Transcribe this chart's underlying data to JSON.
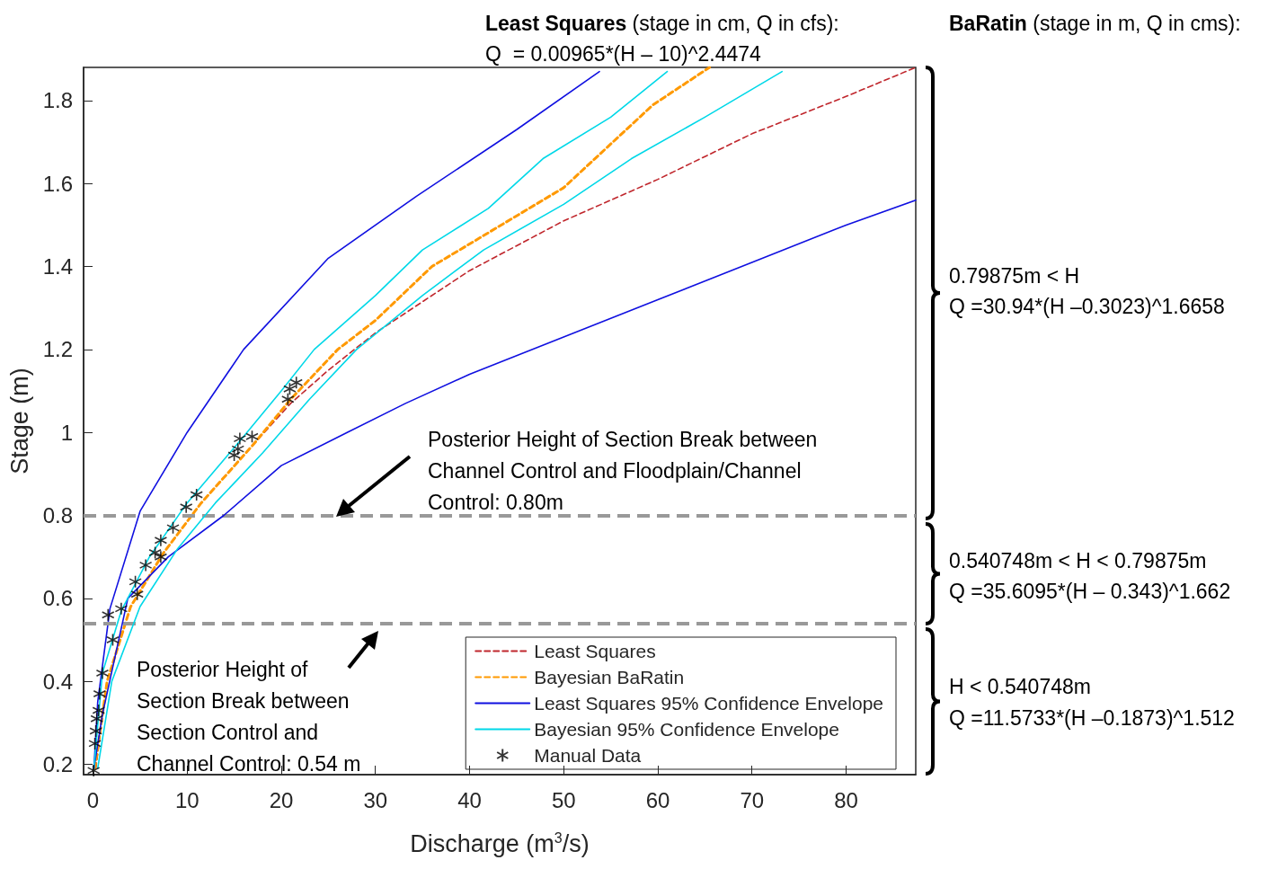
{
  "chart_data": {
    "type": "line",
    "xlabel": "Discharge (m$^{3}$/s)",
    "ylabel": "Stage (m)",
    "xlim": [
      -1,
      87.4
    ],
    "xticks": [
      0,
      10,
      20,
      30,
      40,
      50,
      60,
      70,
      80
    ],
    "ylim": [
      0.175,
      1.88
    ],
    "yticks": [
      0.2,
      0.4,
      0.6,
      0.8,
      1,
      1.2,
      1.4,
      1.6,
      1.8
    ],
    "legend": "bottom right",
    "series": [
      {
        "name": "Least Squares",
        "color": "#c0272d",
        "line_style": "dashed",
        "x": [
          0.3,
          1.5,
          4,
          7.5,
          11.5,
          17,
          21,
          25,
          30,
          40,
          50,
          60,
          70,
          80,
          87.4
        ],
        "values": [
          0.19,
          0.4,
          0.58,
          0.71,
          0.83,
          0.97,
          1.07,
          1.15,
          1.24,
          1.39,
          1.51,
          1.61,
          1.72,
          1.81,
          1.88
        ]
      },
      {
        "name": "Bayesian BaRatin",
        "color": "#ff9900",
        "line_style": "dashed",
        "x": [
          0.2,
          1.5,
          4,
          7.5,
          11.5,
          17,
          21,
          26,
          30,
          36,
          50,
          59.5,
          65.5
        ],
        "values": [
          0.19,
          0.4,
          0.58,
          0.71,
          0.83,
          0.97,
          1.08,
          1.2,
          1.27,
          1.4,
          1.59,
          1.79,
          1.88
        ]
      },
      {
        "name": "Least Squares 95% Confidence Envelope",
        "color": "#1010e0",
        "line_style": "solid",
        "x": [
          0.1,
          0.5,
          1.8,
          5,
          10,
          16,
          25,
          34.4,
          45,
          53.8
        ],
        "values": [
          0.19,
          0.35,
          0.575,
          0.81,
          1,
          1.2,
          1.42,
          1.57,
          1.73,
          1.87
        ]
      },
      {
        "color": "#1010e0",
        "line_style": "solid",
        "x": [
          0.1,
          1,
          3.7,
          8,
          13.9,
          20,
          27,
          33.2,
          40,
          50,
          60,
          70,
          80,
          87.4
        ],
        "values": [
          0.19,
          0.32,
          0.6,
          0.7,
          0.8,
          0.92,
          1,
          1.07,
          1.14,
          1.23,
          1.32,
          1.41,
          1.5,
          1.56
        ]
      },
      {
        "name": "Bayesian 95% Confidence Envelope",
        "color": "#00d8e8",
        "line_style": "solid",
        "x": [
          0.1,
          1,
          3,
          6,
          10,
          16,
          20,
          23.5,
          30,
          35,
          42,
          47.8,
          55,
          61
        ],
        "values": [
          0.19,
          0.42,
          0.57,
          0.7,
          0.83,
          0.99,
          1.1,
          1.2,
          1.33,
          1.44,
          1.54,
          1.66,
          1.76,
          1.87
        ]
      },
      {
        "color": "#00d8e8",
        "line_style": "solid",
        "x": [
          0.5,
          2,
          5,
          9,
          13,
          18,
          23,
          28,
          35,
          41.5,
          50,
          57.2,
          65,
          73.2
        ],
        "values": [
          0.19,
          0.4,
          0.58,
          0.72,
          0.83,
          0.95,
          1.08,
          1.2,
          1.33,
          1.44,
          1.55,
          1.66,
          1.76,
          1.87
        ]
      },
      {
        "name": "Manual Data",
        "type": "scatter",
        "color": "#000000",
        "marker": "cross",
        "x": [
          0.07,
          0.2,
          0.3,
          0.4,
          0.6,
          0.7,
          1,
          2.1,
          1.6,
          3,
          4.7,
          4.5,
          5.6,
          6.6,
          7.2,
          7.2,
          8.5,
          9.9,
          11,
          15,
          15.4,
          15.6,
          16.9,
          20.9,
          20.7,
          21.6
        ],
        "values": [
          0.185,
          0.25,
          0.28,
          0.31,
          0.33,
          0.37,
          0.42,
          0.5,
          0.56,
          0.575,
          0.61,
          0.64,
          0.68,
          0.71,
          0.74,
          0.7,
          0.77,
          0.82,
          0.85,
          0.945,
          0.96,
          0.985,
          0.99,
          1.105,
          1.08,
          1.12
        ]
      }
    ],
    "ref_lines": [
      {
        "axis": "y",
        "value": 0.8,
        "color": "#999999",
        "line_style": "dashed"
      },
      {
        "axis": "y",
        "value": 0.54,
        "color": "#999999",
        "line_style": "dashed"
      }
    ],
    "annotations": [
      "Least Squares (stage in cm, Q in cfs):",
      "Q  = 0.00965*(H – 10)^2.4474",
      "BaRatin (stage in m, Q in cms):",
      "0.79875m < H",
      "Q =30.94*(H –0.3023)^1.6658",
      "0.540748m < H < 0.79875m",
      "Q =35.6095*(H – 0.343)^1.662",
      "H < 0.540748m",
      "Q =11.5733*(H –0.1873)^1.512",
      "Posterior Height of Section Break between Channel Control and Floodplain/Channel Control: 0.80m",
      "Posterior Height of Section Break between Section Control and Channel Control: 0.54 m"
    ]
  }
}
